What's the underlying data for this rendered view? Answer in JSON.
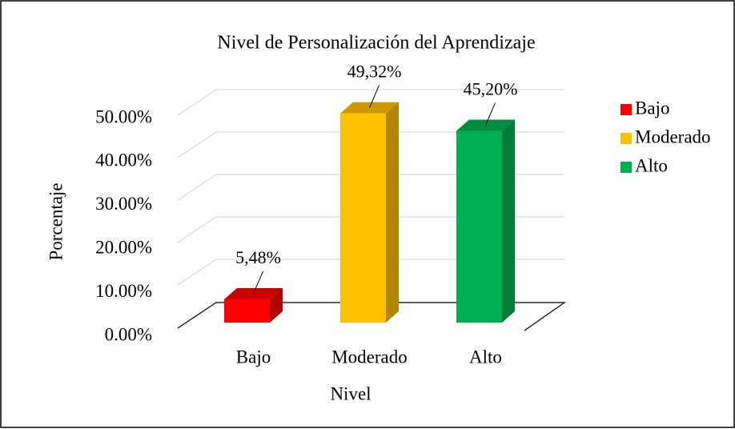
{
  "chart_data": {
    "type": "bar3d",
    "title": "Nivel de Personalización del Aprendizaje",
    "x_label": "Nivel",
    "y_label": "Porcentaje",
    "categories": [
      "Bajo",
      "Moderado",
      "Alto"
    ],
    "series": [
      {
        "name": "Bajo",
        "color": "#ff0000"
      },
      {
        "name": "Moderado",
        "color": "#ffc000"
      },
      {
        "name": "Alto",
        "color": "#00b050"
      }
    ],
    "values": [
      5.48,
      49.32,
      45.2
    ],
    "value_labels": [
      "5,48%",
      "49,32%",
      "45,20%"
    ],
    "ylim": [
      0,
      50
    ],
    "yticks": [
      {
        "value": 0,
        "label": "0.00%"
      },
      {
        "value": 10,
        "label": "10.00%"
      },
      {
        "value": 20,
        "label": "20.00%"
      },
      {
        "value": 30,
        "label": "30.00%"
      },
      {
        "value": 40,
        "label": "40.00%"
      },
      {
        "value": 50,
        "label": "50.00%"
      }
    ],
    "grid": true,
    "legend": "right"
  }
}
